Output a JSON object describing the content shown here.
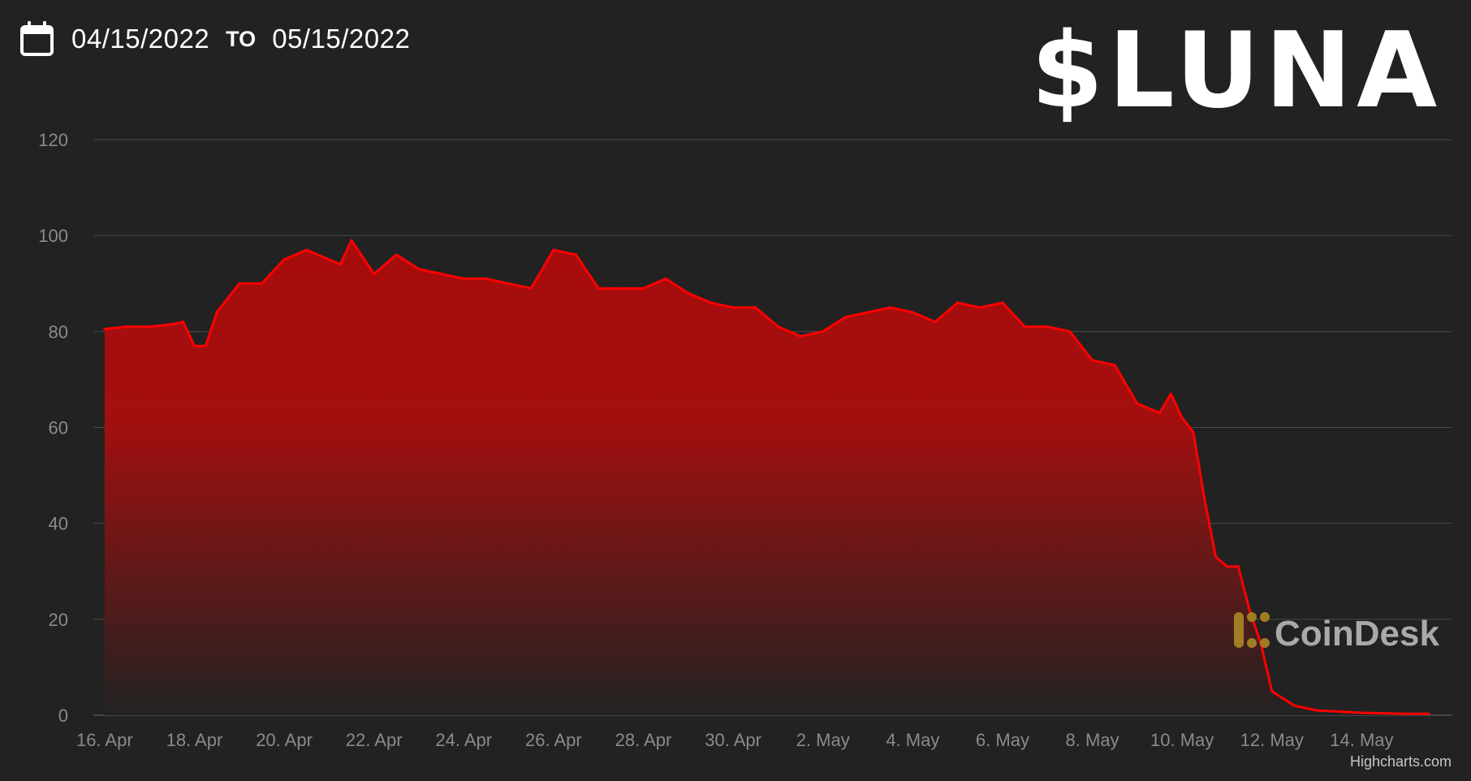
{
  "header": {
    "calendar_icon": "calendar-icon",
    "start_date": "04/15/2022",
    "to_label": "TO",
    "end_date": "05/15/2022",
    "ticker": "$LUNA"
  },
  "watermark": {
    "icon": "coindesk-logo-icon",
    "text": "CoinDesk"
  },
  "credit": "Highcharts.com",
  "colors": {
    "background": "#222222",
    "line": "#ff0000",
    "area_top": "#a80c0c",
    "grid": "#4a4a4a",
    "tick_text": "#8a8a8a"
  },
  "chart_data": {
    "type": "area",
    "title": "$LUNA",
    "xlabel": "",
    "ylabel": "",
    "ylim": [
      0,
      120
    ],
    "xlim": [
      "2022-04-15T18:00",
      "2022-05-15T24:00"
    ],
    "yticks": [
      0,
      20,
      40,
      60,
      80,
      100,
      120
    ],
    "xticks": [
      "16. Apr",
      "18. Apr",
      "20. Apr",
      "22. Apr",
      "24. Apr",
      "26. Apr",
      "28. Apr",
      "30. Apr",
      "2. May",
      "4. May",
      "6. May",
      "8. May",
      "10. May",
      "12. May",
      "14. May"
    ],
    "xtick_dates": [
      "2022-04-16",
      "2022-04-18",
      "2022-04-20",
      "2022-04-22",
      "2022-04-24",
      "2022-04-26",
      "2022-04-28",
      "2022-04-30",
      "2022-05-02",
      "2022-05-04",
      "2022-05-06",
      "2022-05-08",
      "2022-05-10",
      "2022-05-12",
      "2022-05-14"
    ],
    "grid": true,
    "legend": "none",
    "series": [
      {
        "x": [
          "2022-04-16T00:00",
          "2022-04-16T12:00",
          "2022-04-17T00:00",
          "2022-04-17T12:00",
          "2022-04-17T18:00",
          "2022-04-18T00:00",
          "2022-04-18T06:00",
          "2022-04-18T12:00",
          "2022-04-19T00:00",
          "2022-04-19T12:00",
          "2022-04-20T00:00",
          "2022-04-20T12:00",
          "2022-04-21T00:00",
          "2022-04-21T06:00",
          "2022-04-21T12:00",
          "2022-04-22T00:00",
          "2022-04-22T12:00",
          "2022-04-23T00:00",
          "2022-04-23T12:00",
          "2022-04-24T00:00",
          "2022-04-24T12:00",
          "2022-04-25T00:00",
          "2022-04-25T12:00",
          "2022-04-26T00:00",
          "2022-04-26T12:00",
          "2022-04-27T00:00",
          "2022-04-27T12:00",
          "2022-04-28T00:00",
          "2022-04-28T12:00",
          "2022-04-29T00:00",
          "2022-04-29T12:00",
          "2022-04-30T00:00",
          "2022-04-30T12:00",
          "2022-05-01T00:00",
          "2022-05-01T12:00",
          "2022-05-02T00:00",
          "2022-05-02T12:00",
          "2022-05-03T00:00",
          "2022-05-03T12:00",
          "2022-05-04T00:00",
          "2022-05-04T12:00",
          "2022-05-05T00:00",
          "2022-05-05T12:00",
          "2022-05-06T00:00",
          "2022-05-06T12:00",
          "2022-05-07T00:00",
          "2022-05-07T12:00",
          "2022-05-08T00:00",
          "2022-05-08T12:00",
          "2022-05-09T00:00",
          "2022-05-09T12:00",
          "2022-05-09T18:00",
          "2022-05-10T00:00",
          "2022-05-10T06:00",
          "2022-05-10T12:00",
          "2022-05-10T18:00",
          "2022-05-11T00:00",
          "2022-05-11T06:00",
          "2022-05-11T12:00",
          "2022-05-11T18:00",
          "2022-05-12T00:00",
          "2022-05-12T12:00",
          "2022-05-13T00:00",
          "2022-05-14T00:00",
          "2022-05-15T00:00",
          "2022-05-15T12:00"
        ],
        "values": [
          80.5,
          81,
          81,
          81.5,
          82,
          77,
          77,
          84,
          90,
          90,
          95,
          97,
          95,
          94,
          99,
          92,
          96,
          93,
          92,
          91,
          91,
          90,
          89,
          97,
          96,
          89,
          89,
          89,
          91,
          88,
          86,
          85,
          85,
          81,
          79,
          80,
          83,
          84,
          85,
          84,
          82,
          86,
          85,
          86,
          81,
          81,
          80,
          74,
          73,
          65,
          63,
          67,
          62,
          59,
          45,
          33,
          31,
          31,
          22,
          15,
          5,
          2,
          1,
          0.5,
          0.3,
          0.3
        ]
      }
    ]
  }
}
